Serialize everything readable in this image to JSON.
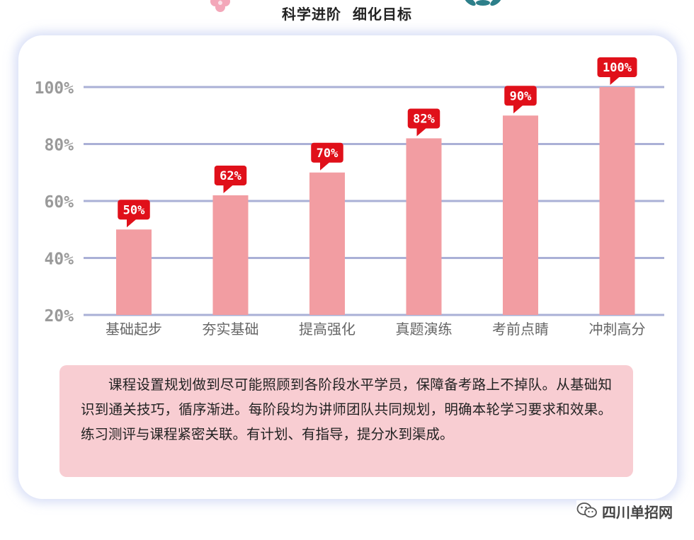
{
  "header": {
    "title": "科学进阶  细化目标"
  },
  "chart_data": {
    "type": "bar",
    "categories": [
      "基础起步",
      "夯实基础",
      "提高强化",
      "真题演练",
      "考前点睛",
      "冲刺高分"
    ],
    "values": [
      50,
      62,
      70,
      82,
      90,
      100
    ],
    "data_labels": [
      "50%",
      "62%",
      "70%",
      "82%",
      "90%",
      "100%"
    ],
    "yticks": [
      20,
      40,
      60,
      80,
      100
    ],
    "ytick_labels": [
      "20%",
      "40%",
      "60%",
      "80%",
      "100%"
    ],
    "ylim": [
      20,
      100
    ],
    "grid": true,
    "colors": {
      "bar": "#f29da2",
      "label_bg": "#e0101a",
      "grid": "#aab0d6"
    }
  },
  "description": {
    "text": "课程设置规划做到尽可能照顾到各阶段水平学员，保障备考路上不掉队。从基础知识到通关技巧，循序渐进。每阶段均为讲师团队共同规划，明确本轮学习要求和效果。练习测评与课程紧密关联。有计划、有指导，提分水到渠成。"
  },
  "watermark": {
    "icon": "wechat-icon",
    "text": "四川单招网"
  }
}
